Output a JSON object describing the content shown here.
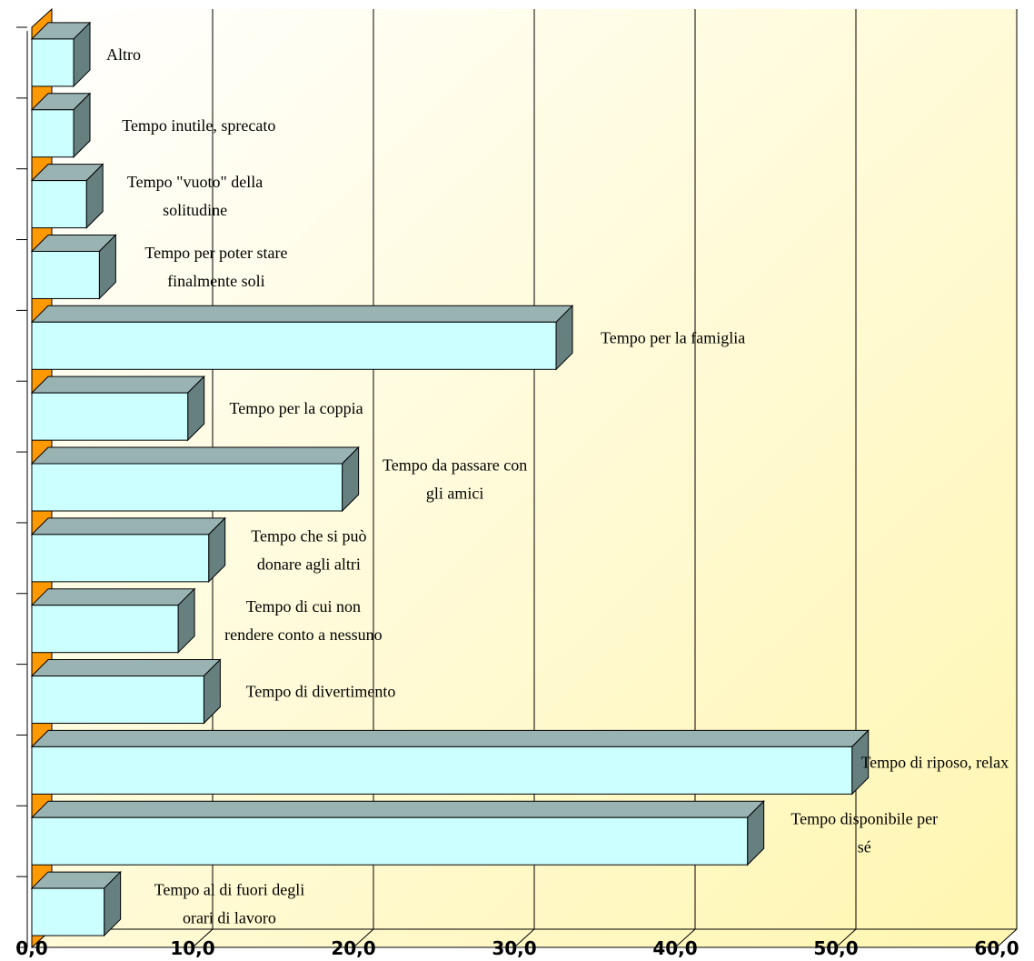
{
  "chart_data": {
    "type": "bar",
    "orientation": "horizontal",
    "style": "3d",
    "title": "",
    "xlabel": "",
    "ylabel": "",
    "xlim": [
      0,
      60
    ],
    "x_ticks": [
      "0,0",
      "10,0",
      "20,0",
      "30,0",
      "40,0",
      "50,0",
      "60,0"
    ],
    "grid": true,
    "categories": [
      "Tempo al di fuori degli orari di lavoro",
      "Tempo disponibile per sé",
      "Tempo di riposo, relax",
      "Tempo di divertimento",
      "Tempo di cui non rendere conto a nessuno",
      "Tempo che si può donare agli altri",
      "Tempo da passare con gli amici",
      "Tempo per la coppia",
      "Tempo per la famiglia",
      "Tempo per poter stare finalmente soli",
      "Tempo \"vuoto\" della solitudine",
      "Tempo inutile, sprecato",
      "Altro"
    ],
    "label_lines": [
      [
        "Tempo al di fuori degli",
        "orari di lavoro"
      ],
      [
        "Tempo disponibile per",
        "sé"
      ],
      [
        "Tempo di riposo, relax"
      ],
      [
        "Tempo di divertimento"
      ],
      [
        "Tempo di cui non",
        "rendere conto a nessuno"
      ],
      [
        "Tempo che si può",
        "donare agli altri"
      ],
      [
        "Tempo da passare con",
        "gli amici"
      ],
      [
        "Tempo per la coppia"
      ],
      [
        "Tempo per la famiglia"
      ],
      [
        "Tempo per poter stare",
        "finalmente soli"
      ],
      [
        "Tempo \"vuoto\" della",
        "solitudine"
      ],
      [
        "Tempo inutile, sprecato"
      ],
      [
        "Altro"
      ]
    ],
    "values": [
      4.5,
      44.5,
      51.0,
      10.7,
      9.1,
      11.0,
      19.3,
      9.7,
      32.6,
      4.2,
      3.4,
      2.6,
      2.6
    ],
    "colors": {
      "bar_front": "#ccffff",
      "bar_top": "#99b3b3",
      "bar_side": "#668080",
      "wall": "#fffde0",
      "wall_edge": "#fff6b0",
      "side_wall": "#ff9900",
      "grid": "#000000"
    }
  }
}
